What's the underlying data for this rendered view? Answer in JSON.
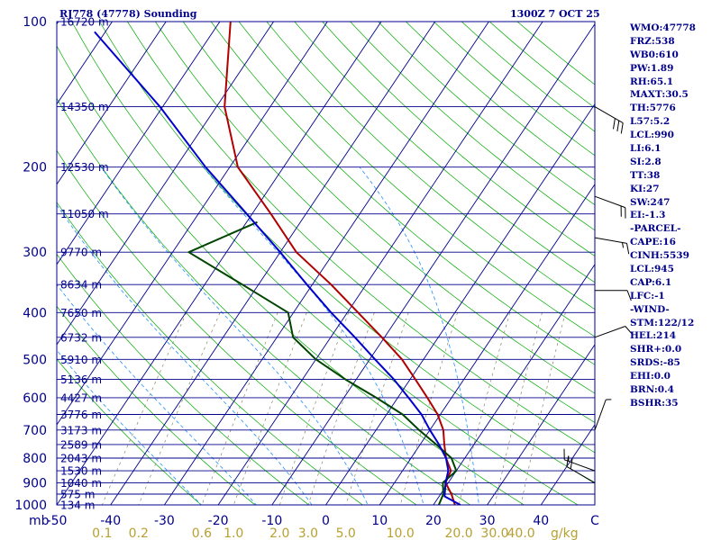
{
  "chart_data": {
    "type": "line",
    "title": "RJ778 (47778) Sounding",
    "datetime": "1300Z  7 OCT 25",
    "xlabel": "mb",
    "mixing_ratio_unit": "g/kg",
    "pressure_ticks": [
      100,
      200,
      300,
      400,
      500,
      600,
      700,
      800,
      900,
      1000
    ],
    "pressure_range": [
      100,
      1000
    ],
    "temperature_ticks": [
      "-50",
      "-40",
      "-30",
      "-20",
      "-10",
      "0",
      "10",
      "20",
      "30",
      "40",
      "C"
    ],
    "temperature_range_c": [
      -50,
      50
    ],
    "mixing_ratio_labels": [
      "0.1",
      "0.2",
      "0.6",
      "1.0",
      "2.0",
      "3.0",
      "5.0",
      "10.0",
      "20.0",
      "30.0",
      "40.0"
    ],
    "height_labels": [
      {
        "p": 100,
        "label": "16720 m"
      },
      {
        "p": 150,
        "label": "14350 m"
      },
      {
        "p": 200,
        "label": "12530 m"
      },
      {
        "p": 250,
        "label": "11050 m"
      },
      {
        "p": 300,
        "label": "9770 m"
      },
      {
        "p": 350,
        "label": "8634 m"
      },
      {
        "p": 400,
        "label": "7650 m"
      },
      {
        "p": 450,
        "label": "6732 m"
      },
      {
        "p": 500,
        "label": "5910 m"
      },
      {
        "p": 550,
        "label": "5136 m"
      },
      {
        "p": 600,
        "label": "4427 m"
      },
      {
        "p": 650,
        "label": "3776 m"
      },
      {
        "p": 700,
        "label": "3173 m"
      },
      {
        "p": 750,
        "label": "2589 m"
      },
      {
        "p": 800,
        "label": "2043 m"
      },
      {
        "p": 850,
        "label": "1530 m"
      },
      {
        "p": 900,
        "label": "1040 m"
      },
      {
        "p": 950,
        "label": "575 m"
      },
      {
        "p": 1000,
        "label": "134 m"
      }
    ],
    "series": [
      {
        "name": "Temperature",
        "color": "#b00000",
        "points": [
          {
            "p": 100,
            "t": -78.0
          },
          {
            "p": 150,
            "t": -68.5
          },
          {
            "p": 200,
            "t": -58.5
          },
          {
            "p": 250,
            "t": -46.5
          },
          {
            "p": 300,
            "t": -37.0
          },
          {
            "p": 350,
            "t": -26.5
          },
          {
            "p": 400,
            "t": -18.0
          },
          {
            "p": 450,
            "t": -10.5
          },
          {
            "p": 500,
            "t": -4.0
          },
          {
            "p": 550,
            "t": 1.0
          },
          {
            "p": 600,
            "t": 5.5
          },
          {
            "p": 650,
            "t": 9.5
          },
          {
            "p": 700,
            "t": 12.5
          },
          {
            "p": 750,
            "t": 14.5
          },
          {
            "p": 800,
            "t": 16.5
          },
          {
            "p": 850,
            "t": 19.0
          },
          {
            "p": 900,
            "t": 19.5
          },
          {
            "p": 950,
            "t": 22.0
          },
          {
            "p": 1000,
            "t": 24.0
          }
        ]
      },
      {
        "name": "Dewpoint",
        "color": "#004400",
        "points": [
          {
            "p": 260,
            "t": -48.0
          },
          {
            "p": 300,
            "t": -57.0
          },
          {
            "p": 350,
            "t": -43.0
          },
          {
            "p": 400,
            "t": -31.0
          },
          {
            "p": 450,
            "t": -27.0
          },
          {
            "p": 500,
            "t": -20.0
          },
          {
            "p": 550,
            "t": -12.0
          },
          {
            "p": 600,
            "t": -4.0
          },
          {
            "p": 650,
            "t": 3.0
          },
          {
            "p": 700,
            "t": 8.0
          },
          {
            "p": 750,
            "t": 13.0
          },
          {
            "p": 800,
            "t": 17.5
          },
          {
            "p": 850,
            "t": 20.0
          },
          {
            "p": 900,
            "t": 19.0
          },
          {
            "p": 950,
            "t": 20.5
          },
          {
            "p": 1000,
            "t": 21.0
          }
        ]
      },
      {
        "name": "Parcel",
        "color": "#0000cc",
        "points": [
          {
            "p": 105,
            "t": -102.0
          },
          {
            "p": 150,
            "t": -80.5
          },
          {
            "p": 200,
            "t": -64.5
          },
          {
            "p": 250,
            "t": -51.0
          },
          {
            "p": 300,
            "t": -40.0
          },
          {
            "p": 350,
            "t": -31.0
          },
          {
            "p": 400,
            "t": -23.0
          },
          {
            "p": 450,
            "t": -15.5
          },
          {
            "p": 500,
            "t": -9.0
          },
          {
            "p": 550,
            "t": -3.0
          },
          {
            "p": 600,
            "t": 2.0
          },
          {
            "p": 650,
            "t": 6.5
          },
          {
            "p": 700,
            "t": 10.0
          },
          {
            "p": 750,
            "t": 13.5
          },
          {
            "p": 800,
            "t": 16.5
          },
          {
            "p": 850,
            "t": 18.5
          },
          {
            "p": 900,
            "t": 19.5
          },
          {
            "p": 960,
            "t": 21.0
          },
          {
            "p": 1000,
            "t": 25.0
          }
        ]
      }
    ],
    "wind_barbs": [
      {
        "p": 150,
        "dir": 300,
        "spd": 30
      },
      {
        "p": 230,
        "dir": 290,
        "spd": 20
      },
      {
        "p": 280,
        "dir": 280,
        "spd": 15
      },
      {
        "p": 360,
        "dir": 270,
        "spd": 10
      },
      {
        "p": 450,
        "dir": 250,
        "spd": 10
      },
      {
        "p": 700,
        "dir": 200,
        "spd": 5
      },
      {
        "p": 850,
        "dir": 110,
        "spd": 15
      },
      {
        "p": 900,
        "dir": 120,
        "spd": 20
      }
    ],
    "indices": [
      "WMO:47778",
      "FRZ:538",
      "WB0:610",
      "PW:1.89",
      "RH:65.1",
      "MAXT:30.5",
      "TH:5776",
      "L57:5.2",
      "LCL:990",
      "LI:6.1",
      "SI:2.8",
      "TT:38",
      "KI:27",
      "SW:247",
      "EI:-1.3",
      "-PARCEL-",
      "CAPE:16",
      "CINH:5539",
      "LCL:945",
      "CAP:6.1",
      "LFC:-1",
      "-WIND-",
      "STM:122/12",
      "HEL:214",
      "SHR+:0.0",
      "SRDS:-85",
      "EHI:0.0",
      "BRN:0.4",
      "BSHR:35"
    ],
    "colors": {
      "isobar": "#00008b",
      "isotherm": "#00008b",
      "dry_adiabat": "#00aa00",
      "moist_adiabat": "#1e90ff",
      "mixing_ratio": "#888866",
      "label": "#00008b",
      "mixing_label": "#b8a030"
    }
  }
}
